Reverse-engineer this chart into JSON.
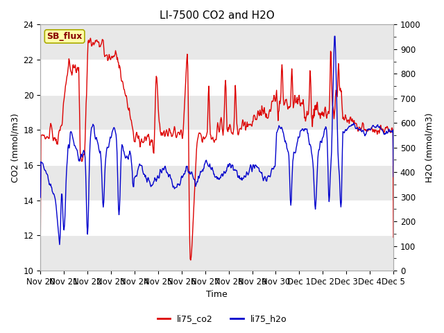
{
  "title": "LI-7500 CO2 and H2O",
  "xlabel": "Time",
  "ylabel_left": "CO2 (mmol/m3)",
  "ylabel_right": "H2O (mmol/m3)",
  "ylim_left": [
    10,
    24
  ],
  "ylim_right": [
    0,
    1000
  ],
  "yticks_left": [
    10,
    12,
    14,
    16,
    18,
    20,
    22,
    24
  ],
  "yticks_right": [
    0,
    100,
    200,
    300,
    400,
    500,
    600,
    700,
    800,
    900,
    1000
  ],
  "xtick_labels": [
    "Nov 20",
    "Nov 21",
    "Nov 22",
    "Nov 23",
    "Nov 24",
    "Nov 25",
    "Nov 26",
    "Nov 27",
    "Nov 28",
    "Nov 29",
    "Nov 30",
    "Dec 1",
    "Dec 2",
    "Dec 3",
    "Dec 4",
    "Dec 5"
  ],
  "legend_labels": [
    "li75_co2",
    "li75_h2o"
  ],
  "co2_color": "#DD0000",
  "h2o_color": "#0000CC",
  "fig_bg": "#FFFFFF",
  "plot_bg": "#FFFFFF",
  "band_color": "#E8E8E8",
  "grid_color": "#CCCCCC",
  "annotation_text": "SB_flux",
  "annotation_bg": "#FFFFAA",
  "annotation_edge": "#AAAA00",
  "title_fontsize": 11,
  "label_fontsize": 9,
  "tick_fontsize": 8.5,
  "line_width": 1.0,
  "legend_fontsize": 9
}
